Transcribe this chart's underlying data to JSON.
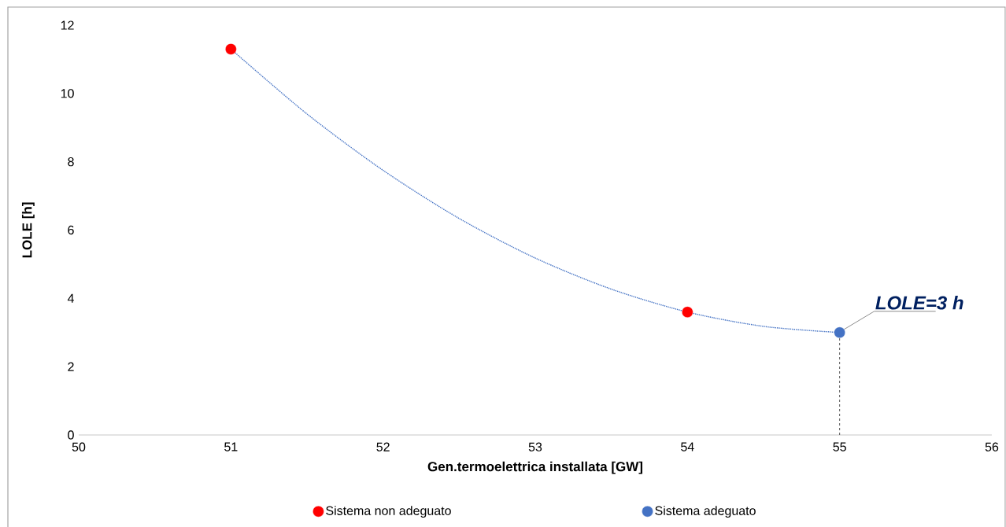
{
  "chart_data": {
    "type": "scatter",
    "xlabel": "Gen.termoelettrica installata [GW]",
    "ylabel": "LOLE [h]",
    "xlim": [
      50,
      56
    ],
    "xticks": [
      50,
      51,
      52,
      53,
      54,
      55,
      56
    ],
    "ylim": [
      0,
      12
    ],
    "yticks": [
      0,
      2,
      4,
      6,
      8,
      10,
      12
    ],
    "grid": false,
    "legend": "bottom",
    "series": [
      {
        "name": "Sistema non adeguato",
        "color": "#ff0000",
        "marker": "circle",
        "x": [
          51,
          54
        ],
        "values": [
          11.3,
          3.6
        ]
      },
      {
        "name": "Sistema adeguato",
        "color": "#4472c4",
        "marker": "circle",
        "x": [
          55
        ],
        "values": [
          3.0
        ]
      },
      {
        "type": "line",
        "color": "#4472c4",
        "line_style": "dotted",
        "marker": "none",
        "x": [
          51,
          51.5,
          52,
          52.5,
          53,
          53.5,
          54,
          54.5,
          55
        ],
        "values": [
          11.3,
          9.4,
          7.75,
          6.34,
          5.18,
          4.27,
          3.6,
          3.18,
          3.0
        ]
      }
    ],
    "ref_lines": [
      {
        "axis": "x",
        "value": 55,
        "color": "#404040",
        "line_style": "dashed"
      }
    ],
    "annotations": [
      {
        "text": "LOLE=3 h",
        "x": 55,
        "y": 3.0
      }
    ]
  }
}
